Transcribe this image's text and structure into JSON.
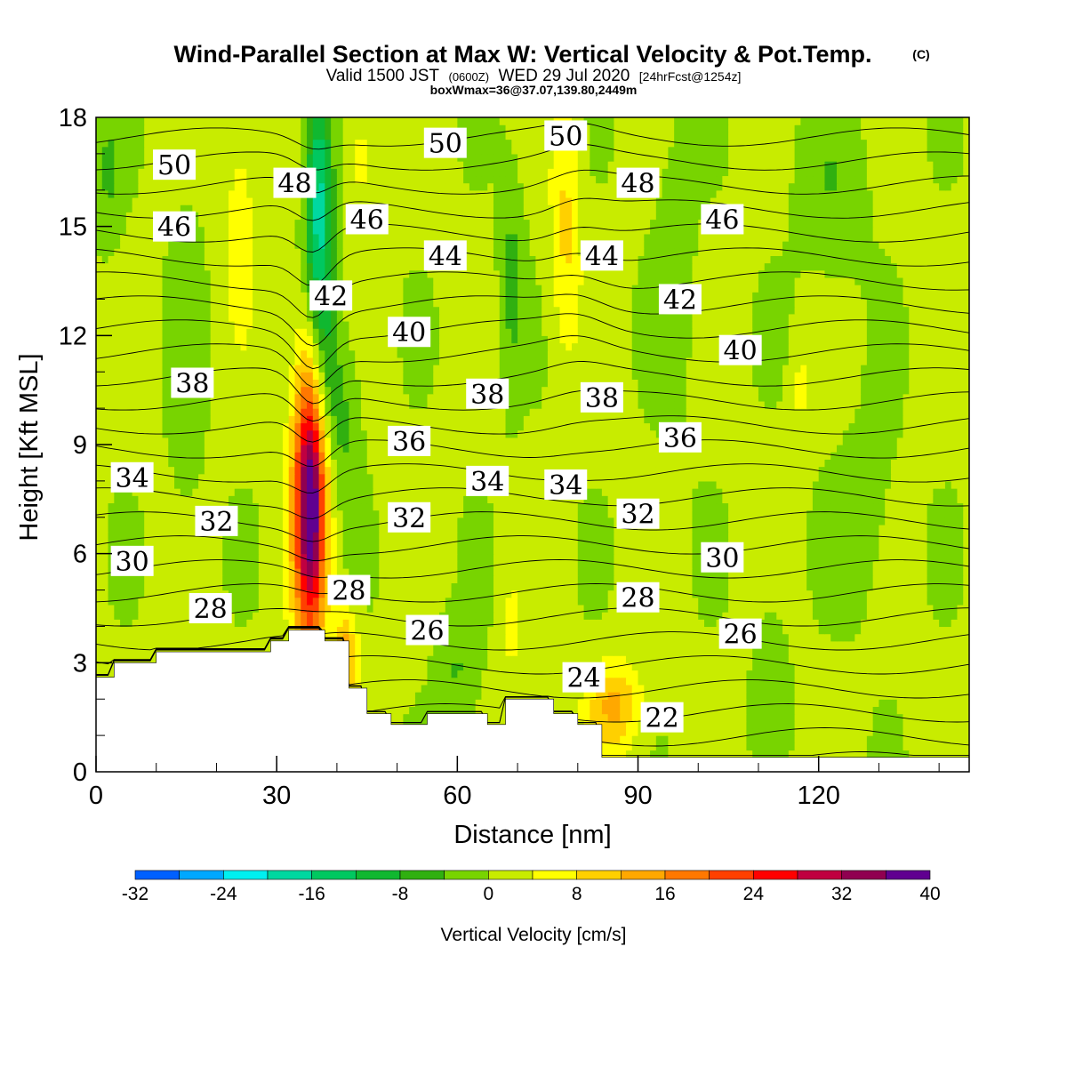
{
  "chart_data": {
    "type": "heatmap",
    "title": "Wind-Parallel Section at Max W: Vertical Velocity & Pot.Temp.",
    "title_mark": "(C)",
    "subtitle": {
      "valid": "Valid 1500 JST",
      "utc": "(0600Z)",
      "date": "WED 29 Jul 2020",
      "forecast": "[24hrFcst@1254z]"
    },
    "box_note": "boxWmax=36@37.07,139.80,2449m",
    "xlabel": "Distance [nm]",
    "ylabel": "Height [Kft MSL]",
    "xlim": [
      0,
      145
    ],
    "ylim": [
      0,
      18
    ],
    "x_ticks": [
      0,
      30,
      60,
      90,
      120
    ],
    "y_ticks": [
      0,
      3,
      6,
      9,
      12,
      15,
      18
    ],
    "grid": false,
    "colorbar": {
      "label": "Vertical Velocity [cm/s]",
      "placement": "bottom",
      "min": -32,
      "max": 40,
      "step": 4,
      "tick_labels": [
        "-32",
        "-24",
        "-16",
        "-8",
        "0",
        "8",
        "16",
        "24",
        "32",
        "40"
      ],
      "colors": [
        "#0000ff",
        "#0060ff",
        "#00a8ff",
        "#00f0f0",
        "#00d8a0",
        "#00c860",
        "#10b830",
        "#30b010",
        "#78d400",
        "#c8ec00",
        "#ffff00",
        "#ffd000",
        "#ffa800",
        "#ff7800",
        "#ff4000",
        "#ff0000",
        "#c00040",
        "#900050",
        "#600090"
      ]
    },
    "terrain_kft": [
      [
        0,
        2.6
      ],
      [
        3,
        3.0
      ],
      [
        10,
        3.3
      ],
      [
        29,
        3.6
      ],
      [
        32,
        3.9
      ],
      [
        38,
        3.6
      ],
      [
        42,
        2.3
      ],
      [
        45,
        1.6
      ],
      [
        49,
        1.3
      ],
      [
        55,
        1.6
      ],
      [
        65,
        1.3
      ],
      [
        68,
        2.0
      ],
      [
        76,
        1.6
      ],
      [
        80,
        1.3
      ],
      [
        84,
        0.4
      ],
      [
        145,
        0.4
      ]
    ],
    "vertical_velocity_features": [
      {
        "name": "updraft core",
        "x": 35.5,
        "y": 7.4,
        "rx": 2.6,
        "ry": 4.2,
        "w": 38
      },
      {
        "name": "downdraft plume",
        "x": 37,
        "y": 15.5,
        "rx": 2.2,
        "ry": 3.6,
        "w": -18
      },
      {
        "name": "lee updraft",
        "x": 86,
        "y": 1.8,
        "rx": 4.5,
        "ry": 1.0,
        "w": 12
      },
      {
        "name": "upper updraft band",
        "x": 78,
        "y": 15,
        "rx": 2.5,
        "ry": 4,
        "w": 8
      }
    ],
    "potential_temperature_labels": [
      {
        "value": "50",
        "x": 13,
        "y": 16.7
      },
      {
        "value": "48",
        "x": 33,
        "y": 16.2
      },
      {
        "value": "50",
        "x": 58,
        "y": 17.3
      },
      {
        "value": "50",
        "x": 78,
        "y": 17.5
      },
      {
        "value": "48",
        "x": 90,
        "y": 16.2
      },
      {
        "value": "46",
        "x": 13,
        "y": 15
      },
      {
        "value": "46",
        "x": 45,
        "y": 15.2
      },
      {
        "value": "46",
        "x": 104,
        "y": 15.2
      },
      {
        "value": "44",
        "x": 58,
        "y": 14.2
      },
      {
        "value": "44",
        "x": 84,
        "y": 14.2
      },
      {
        "value": "42",
        "x": 39,
        "y": 13.1
      },
      {
        "value": "42",
        "x": 97,
        "y": 13
      },
      {
        "value": "40",
        "x": 52,
        "y": 12.1
      },
      {
        "value": "40",
        "x": 107,
        "y": 11.6
      },
      {
        "value": "38",
        "x": 16,
        "y": 10.7
      },
      {
        "value": "38",
        "x": 65,
        "y": 10.4
      },
      {
        "value": "38",
        "x": 84,
        "y": 10.3
      },
      {
        "value": "36",
        "x": 52,
        "y": 9.1
      },
      {
        "value": "36",
        "x": 97,
        "y": 9.2
      },
      {
        "value": "34",
        "x": 6,
        "y": 8.1
      },
      {
        "value": "34",
        "x": 65,
        "y": 8.0
      },
      {
        "value": "34",
        "x": 78,
        "y": 7.9
      },
      {
        "value": "32",
        "x": 20,
        "y": 6.9
      },
      {
        "value": "32",
        "x": 52,
        "y": 7.0
      },
      {
        "value": "32",
        "x": 90,
        "y": 7.1
      },
      {
        "value": "30",
        "x": 6,
        "y": 5.8
      },
      {
        "value": "30",
        "x": 104,
        "y": 5.9
      },
      {
        "value": "28",
        "x": 19,
        "y": 4.5
      },
      {
        "value": "28",
        "x": 42,
        "y": 5.0
      },
      {
        "value": "28",
        "x": 90,
        "y": 4.8
      },
      {
        "value": "26",
        "x": 55,
        "y": 3.9
      },
      {
        "value": "26",
        "x": 107,
        "y": 3.8
      },
      {
        "value": "24",
        "x": 81,
        "y": 2.6
      },
      {
        "value": "22",
        "x": 94,
        "y": 1.5
      }
    ]
  }
}
